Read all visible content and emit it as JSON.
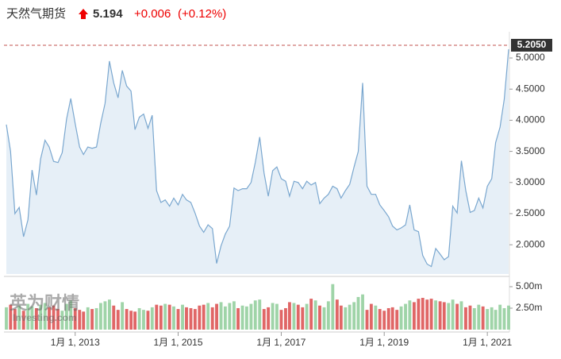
{
  "header": {
    "name": "天然气期货",
    "price": "5.194",
    "change": "+0.006",
    "change_pct": "(+0.12%)"
  },
  "watermark": {
    "brand": "英为财情",
    "site": "Investing.com"
  },
  "chart_data": [
    {
      "type": "area",
      "color": "#7aa7cf",
      "fill": "#e6eff7",
      "x_start": "2011-09-01",
      "step": "month",
      "xlim": [
        "2011-09-01",
        "2021-06-01"
      ],
      "values": [
        3.93,
        3.5,
        2.5,
        2.6,
        2.13,
        2.4,
        3.2,
        2.8,
        3.38,
        3.68,
        3.57,
        3.34,
        3.32,
        3.48,
        4.02,
        4.35,
        3.95,
        3.57,
        3.45,
        3.57,
        3.55,
        3.57,
        3.95,
        4.27,
        4.95,
        4.6,
        4.36,
        4.8,
        4.55,
        4.47,
        3.85,
        4.05,
        4.1,
        3.87,
        4.08,
        2.87,
        2.68,
        2.72,
        2.62,
        2.75,
        2.64,
        2.81,
        2.72,
        2.68,
        2.51,
        2.3,
        2.2,
        2.32,
        2.26,
        1.7,
        1.98,
        2.17,
        2.3,
        2.91,
        2.87,
        2.9,
        2.9,
        3.0,
        3.32,
        3.73,
        3.15,
        2.78,
        3.19,
        3.25,
        3.06,
        3.02,
        2.78,
        3.02,
        3.0,
        2.9,
        3.02,
        2.96,
        3.0,
        2.66,
        2.75,
        2.81,
        2.94,
        2.9,
        2.75,
        2.87,
        2.97,
        3.25,
        3.5,
        4.6,
        2.94,
        2.81,
        2.81,
        2.64,
        2.55,
        2.45,
        2.3,
        2.24,
        2.27,
        2.32,
        2.64,
        2.24,
        2.21,
        1.83,
        1.69,
        1.65,
        1.94,
        1.85,
        1.76,
        1.81,
        2.62,
        2.51,
        3.35,
        2.87,
        2.52,
        2.55,
        2.75,
        2.59,
        2.94,
        3.06,
        3.64,
        3.89,
        4.34,
        5.14
      ],
      "ylim": [
        1.53,
        5.23
      ],
      "yticks": [
        {
          "value": 2,
          "label": "2.0000"
        },
        {
          "value": 2.5,
          "label": "2.5000"
        },
        {
          "value": 3,
          "label": "3.0000"
        },
        {
          "value": 3.5,
          "label": "3.5000"
        },
        {
          "value": 4,
          "label": "4.0000"
        },
        {
          "value": 4.5,
          "label": "4.5000"
        },
        {
          "value": 5,
          "label": "5.0000"
        }
      ],
      "reference_line": {
        "value": 5.205,
        "label": "5.2050",
        "color": "#c0504d"
      }
    },
    {
      "type": "bar",
      "up_color": "#9fd4a8",
      "down_color": "#e06666",
      "x_start": "2011-09-01",
      "step": "month",
      "xlim": [
        "2011-09-01",
        "2021-06-01"
      ],
      "values": [
        2.6,
        2.9,
        2.4,
        2.8,
        2.2,
        3.0,
        2.7,
        2.5,
        2.9,
        3.1,
        2.6,
        2.8,
        2.4,
        2.2,
        3.0,
        3.4,
        2.5,
        2.3,
        2.1,
        2.6,
        2.4,
        2.5,
        3.1,
        3.3,
        3.5,
        2.8,
        2.3,
        3.2,
        2.4,
        2.2,
        2.1,
        2.5,
        2.3,
        2.2,
        2.6,
        2.9,
        2.8,
        3.0,
        2.9,
        2.7,
        2.4,
        2.9,
        2.6,
        2.5,
        2.4,
        2.8,
        2.9,
        3.1,
        2.6,
        3.0,
        3.2,
        2.7,
        3.1,
        3.3,
        2.5,
        2.8,
        2.7,
        3.0,
        3.4,
        3.5,
        2.4,
        2.6,
        3.1,
        3.0,
        2.3,
        2.5,
        3.2,
        3.1,
        2.9,
        2.6,
        3.0,
        3.6,
        3.4,
        2.8,
        2.6,
        3.3,
        5.3,
        3.5,
        2.8,
        2.6,
        2.9,
        3.2,
        3.8,
        4.1,
        2.3,
        3.0,
        2.8,
        2.4,
        2.2,
        2.5,
        2.6,
        2.3,
        2.7,
        3.0,
        3.4,
        3.2,
        3.6,
        3.7,
        3.5,
        3.6,
        3.4,
        3.3,
        3.2,
        3.1,
        3.5,
        3.0,
        3.3,
        2.6,
        2.8,
        2.5,
        2.9,
        2.7,
        2.4,
        2.6,
        2.3,
        2.9,
        2.5,
        2.8
      ],
      "ylim": [
        0,
        5.83
      ],
      "yticks": [
        {
          "value": 2.5,
          "label": "2.50m"
        },
        {
          "value": 5,
          "label": "5.00m"
        }
      ],
      "xticks": [
        {
          "value": "2013-01-01",
          "label": "1月 1, 2013"
        },
        {
          "value": "2015-01-01",
          "label": "1月 1, 2015"
        },
        {
          "value": "2017-01-01",
          "label": "1月 1, 2017"
        },
        {
          "value": "2019-01-01",
          "label": "1月 1, 2019"
        },
        {
          "value": "2021-01-01",
          "label": "1月 1, 2021"
        }
      ]
    }
  ]
}
